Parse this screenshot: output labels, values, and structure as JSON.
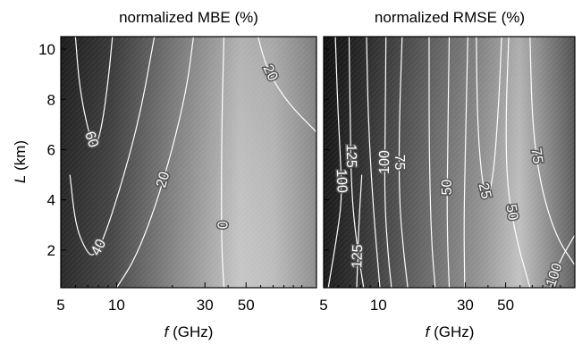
{
  "chart_data": [
    {
      "type": "contour",
      "title": "normalized MBE (%)",
      "xlabel_var": "f",
      "xlabel_unit": " (GHz)",
      "ylabel_var": "L",
      "ylabel_unit": " (km)",
      "xscale": "log",
      "xlim": [
        5,
        120
      ],
      "ylim": [
        0.5,
        10.5
      ],
      "xticks": [
        5,
        10,
        30,
        50
      ],
      "yticks": [
        2,
        4,
        6,
        8,
        10
      ],
      "shading": "grayscale, dark = high value",
      "contours": [
        {
          "level": "60",
          "points": [
            [
              6.0,
              10.5
            ],
            [
              6.3,
              8.5
            ],
            [
              7.0,
              6.8
            ],
            [
              7.6,
              6.0
            ],
            [
              8.3,
              6.8
            ],
            [
              9.1,
              9.0
            ],
            [
              9.5,
              10.5
            ]
          ]
        },
        {
          "level": "40",
          "points": [
            [
              5.6,
              5.0
            ],
            [
              6.0,
              3.0
            ],
            [
              6.8,
              2.0
            ],
            [
              7.5,
              1.7
            ],
            [
              8.6,
              2.5
            ],
            [
              11.0,
              5.0
            ],
            [
              13.5,
              7.5
            ],
            [
              16.0,
              10.5
            ]
          ]
        },
        {
          "level": "20",
          "points": [
            [
              10.0,
              0.5
            ],
            [
              12.5,
              1.6
            ],
            [
              16.0,
              3.6
            ],
            [
              20.0,
              6.0
            ],
            [
              24.0,
              8.5
            ],
            [
              26.0,
              10.5
            ]
          ]
        },
        {
          "level": "0",
          "points": [
            [
              38.0,
              0.5
            ],
            [
              37.0,
              2.0
            ],
            [
              36.8,
              4.0
            ],
            [
              37.0,
              7.0
            ],
            [
              38.0,
              10.5
            ]
          ]
        },
        {
          "level": "20",
          "points": [
            [
              58.0,
              10.5
            ],
            [
              63.0,
              9.5
            ],
            [
              72.0,
              8.6
            ],
            [
              88.0,
              7.7
            ],
            [
              120.0,
              6.7
            ]
          ]
        }
      ]
    },
    {
      "type": "contour",
      "title": "normalized RMSE (%)",
      "xlabel_var": "f",
      "xlabel_unit": " (GHz)",
      "xscale": "log",
      "xlim": [
        5,
        120
      ],
      "ylim": [
        0.5,
        10.5
      ],
      "xticks": [
        5,
        10,
        30,
        50
      ],
      "shading": "grayscale, dark = high value",
      "contours": [
        {
          "level": "100",
          "points": [
            [
              5.8,
              10.5
            ],
            [
              5.95,
              8.0
            ],
            [
              6.2,
              5.5
            ],
            [
              6.3,
              4.0
            ],
            [
              5.9,
              2.5
            ],
            [
              5.3,
              0.5
            ]
          ]
        },
        {
          "level": "125",
          "points": [
            [
              6.9,
              10.5
            ],
            [
              7.0,
              7.0
            ],
            [
              7.1,
              4.5
            ],
            [
              7.5,
              2.5
            ],
            [
              8.3,
              0.5
            ]
          ]
        },
        {
          "level": "",
          "points": [
            [
              8.6,
              10.5
            ],
            [
              8.8,
              7.0
            ],
            [
              9.4,
              3.5
            ],
            [
              10.2,
              0.5
            ]
          ]
        },
        {
          "level": "125",
          "points": [
            [
              7.6,
              0.5
            ],
            [
              7.8,
              3.0
            ],
            [
              8.1,
              5.0
            ]
          ]
        },
        {
          "level": "75",
          "points": [
            [
              13.5,
              10.5
            ],
            [
              13.0,
              7.0
            ],
            [
              13.0,
              4.0
            ],
            [
              13.8,
              1.8
            ],
            [
              14.5,
              0.5
            ]
          ]
        },
        {
          "level": "100",
          "points": [
            [
              11.0,
              10.5
            ],
            [
              10.9,
              7.0
            ],
            [
              10.8,
              4.0
            ],
            [
              11.3,
              1.8
            ],
            [
              11.8,
              0.5
            ]
          ]
        },
        {
          "level": "",
          "points": [
            [
              19.0,
              10.5
            ],
            [
              19.0,
              6.0
            ],
            [
              19.5,
              2.5
            ],
            [
              20.5,
              0.5
            ]
          ]
        },
        {
          "level": "50",
          "points": [
            [
              24.5,
              10.5
            ],
            [
              24.0,
              6.0
            ],
            [
              23.8,
              3.0
            ],
            [
              24.5,
              0.5
            ]
          ]
        },
        {
          "level": "",
          "points": [
            [
              31.0,
              10.5
            ],
            [
              30.0,
              6.0
            ],
            [
              29.5,
              3.0
            ],
            [
              29.8,
              0.5
            ]
          ]
        },
        {
          "level": "25",
          "points": [
            [
              34.5,
              10.5
            ],
            [
              35.0,
              7.0
            ],
            [
              37.0,
              4.8
            ],
            [
              39.5,
              3.9
            ],
            [
              43.0,
              5.0
            ],
            [
              46.0,
              8.0
            ],
            [
              47.5,
              10.5
            ]
          ]
        },
        {
          "level": "50",
          "points": [
            [
              52.0,
              10.5
            ],
            [
              50.0,
              7.0
            ],
            [
              51.0,
              4.5
            ],
            [
              57.0,
              2.5
            ],
            [
              65.0,
              1.0
            ],
            [
              68.0,
              0.5
            ]
          ]
        },
        {
          "level": "75",
          "points": [
            [
              68.0,
              10.5
            ],
            [
              70.0,
              7.0
            ],
            [
              78.0,
              4.5
            ],
            [
              95.0,
              2.5
            ],
            [
              120.0,
              1.4
            ]
          ]
        },
        {
          "level": "100",
          "points": [
            [
              88.0,
              0.5
            ],
            [
              98.0,
              1.5
            ],
            [
              120.0,
              2.6
            ]
          ]
        }
      ]
    }
  ]
}
